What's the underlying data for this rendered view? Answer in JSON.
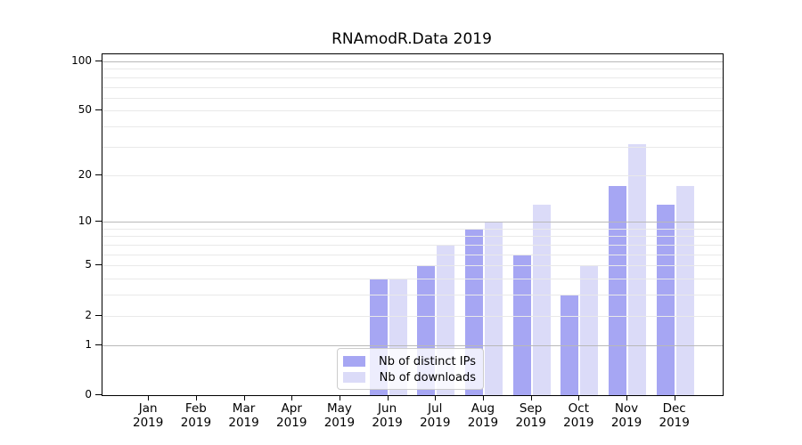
{
  "chart_data": {
    "type": "bar",
    "title": "RNAmodR.Data 2019",
    "categories": [
      "Jan",
      "Feb",
      "Mar",
      "Apr",
      "May",
      "Jun",
      "Jul",
      "Aug",
      "Sep",
      "Oct",
      "Nov",
      "Dec"
    ],
    "category_year": "2019",
    "series": [
      {
        "name": "Nb of distinct IPs",
        "color": "#a6a6f3",
        "values": [
          0,
          0,
          0,
          0,
          0,
          4,
          5,
          9,
          6,
          3,
          17,
          13
        ]
      },
      {
        "name": "Nb of downloads",
        "color": "#dbdbf8",
        "values": [
          0,
          0,
          0,
          0,
          0,
          4,
          7,
          10,
          13,
          5,
          31,
          17
        ]
      }
    ],
    "yscale": "log10(value+1)",
    "ylim": [
      0,
      111
    ],
    "y_tick_labels": [
      0,
      1,
      2,
      5,
      10,
      20,
      50,
      100
    ],
    "y_major_gridlines": [
      1,
      10,
      100
    ],
    "y_minor_gridlines": [
      2,
      3,
      4,
      5,
      6,
      7,
      8,
      9,
      20,
      30,
      40,
      50,
      60,
      70,
      80,
      90
    ],
    "legend": {
      "entries": [
        "Nb of distinct IPs",
        "Nb of downloads"
      ],
      "position": "lower-center-left"
    },
    "grid_on": true,
    "colors": {
      "major_grid": "#b9b9b9",
      "minor_grid": "#e9e9e9",
      "spine": "#000000",
      "text": "#000000",
      "legend_border": "#cccccc"
    }
  }
}
